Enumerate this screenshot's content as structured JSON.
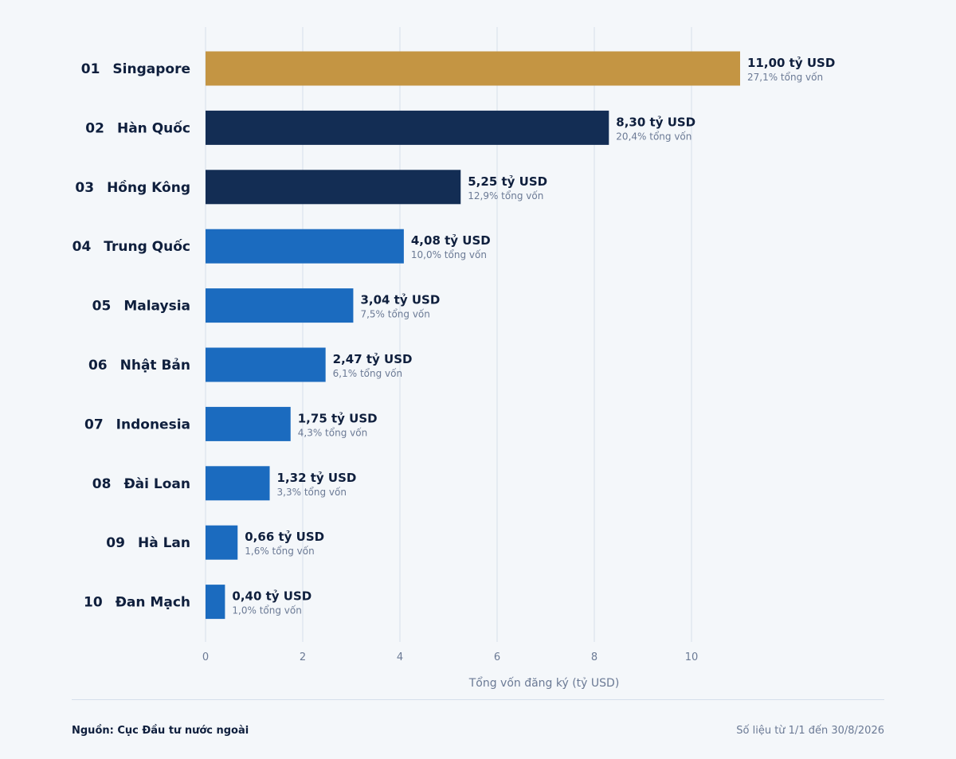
{
  "chart_data": {
    "type": "bar",
    "orientation": "horizontal",
    "ranks": [
      "01",
      "02",
      "03",
      "04",
      "05",
      "06",
      "07",
      "08",
      "09",
      "10"
    ],
    "categories": [
      "Singapore",
      "Hàn Quốc",
      "Hồng Kông",
      "Trung Quốc",
      "Malaysia",
      "Nhật Bản",
      "Indonesia",
      "Đài Loan",
      "Hà Lan",
      "Đan Mạch"
    ],
    "values": [
      11.0,
      8.3,
      5.25,
      4.08,
      3.04,
      2.47,
      1.75,
      1.32,
      0.66,
      0.4
    ],
    "value_labels": [
      "11,00 tỷ USD",
      "8,30 tỷ USD",
      "5,25 tỷ USD",
      "4,08 tỷ USD",
      "3,04 tỷ USD",
      "2,47 tỷ USD",
      "1,75 tỷ USD",
      "1,32 tỷ USD",
      "0,66 tỷ USD",
      "0,40 tỷ USD"
    ],
    "share_labels": [
      "27,1% tổng vốn",
      "20,4% tổng vốn",
      "12,9% tổng vốn",
      "10,0% tổng vốn",
      "7,5% tổng vốn",
      "6,1% tổng vốn",
      "4,3% tổng vốn",
      "3,3% tổng vốn",
      "1,6% tổng vốn",
      "1,0% tổng vốn"
    ],
    "bar_colors": [
      "#c49543",
      "#132d54",
      "#132d54",
      "#1b6bbf",
      "#1b6bbf",
      "#1b6bbf",
      "#1b6bbf",
      "#1b6bbf",
      "#1b6bbf",
      "#1b6bbf"
    ],
    "xlabel": "Tổng vốn đăng ký (tỷ USD)",
    "xlim": [
      0,
      11
    ],
    "xticks": [
      0,
      2,
      4,
      6,
      8,
      10
    ],
    "grid": true
  },
  "footer": {
    "source": "Nguồn: Cục Đầu tư nước ngoài",
    "period": "Số liệu từ 1/1 đến 30/8/2026"
  },
  "colors": {
    "background": "#f4f7fa",
    "gridline": "#d6dfeb",
    "text_dark": "#0f1f3d",
    "text_muted": "#6b7a95"
  }
}
